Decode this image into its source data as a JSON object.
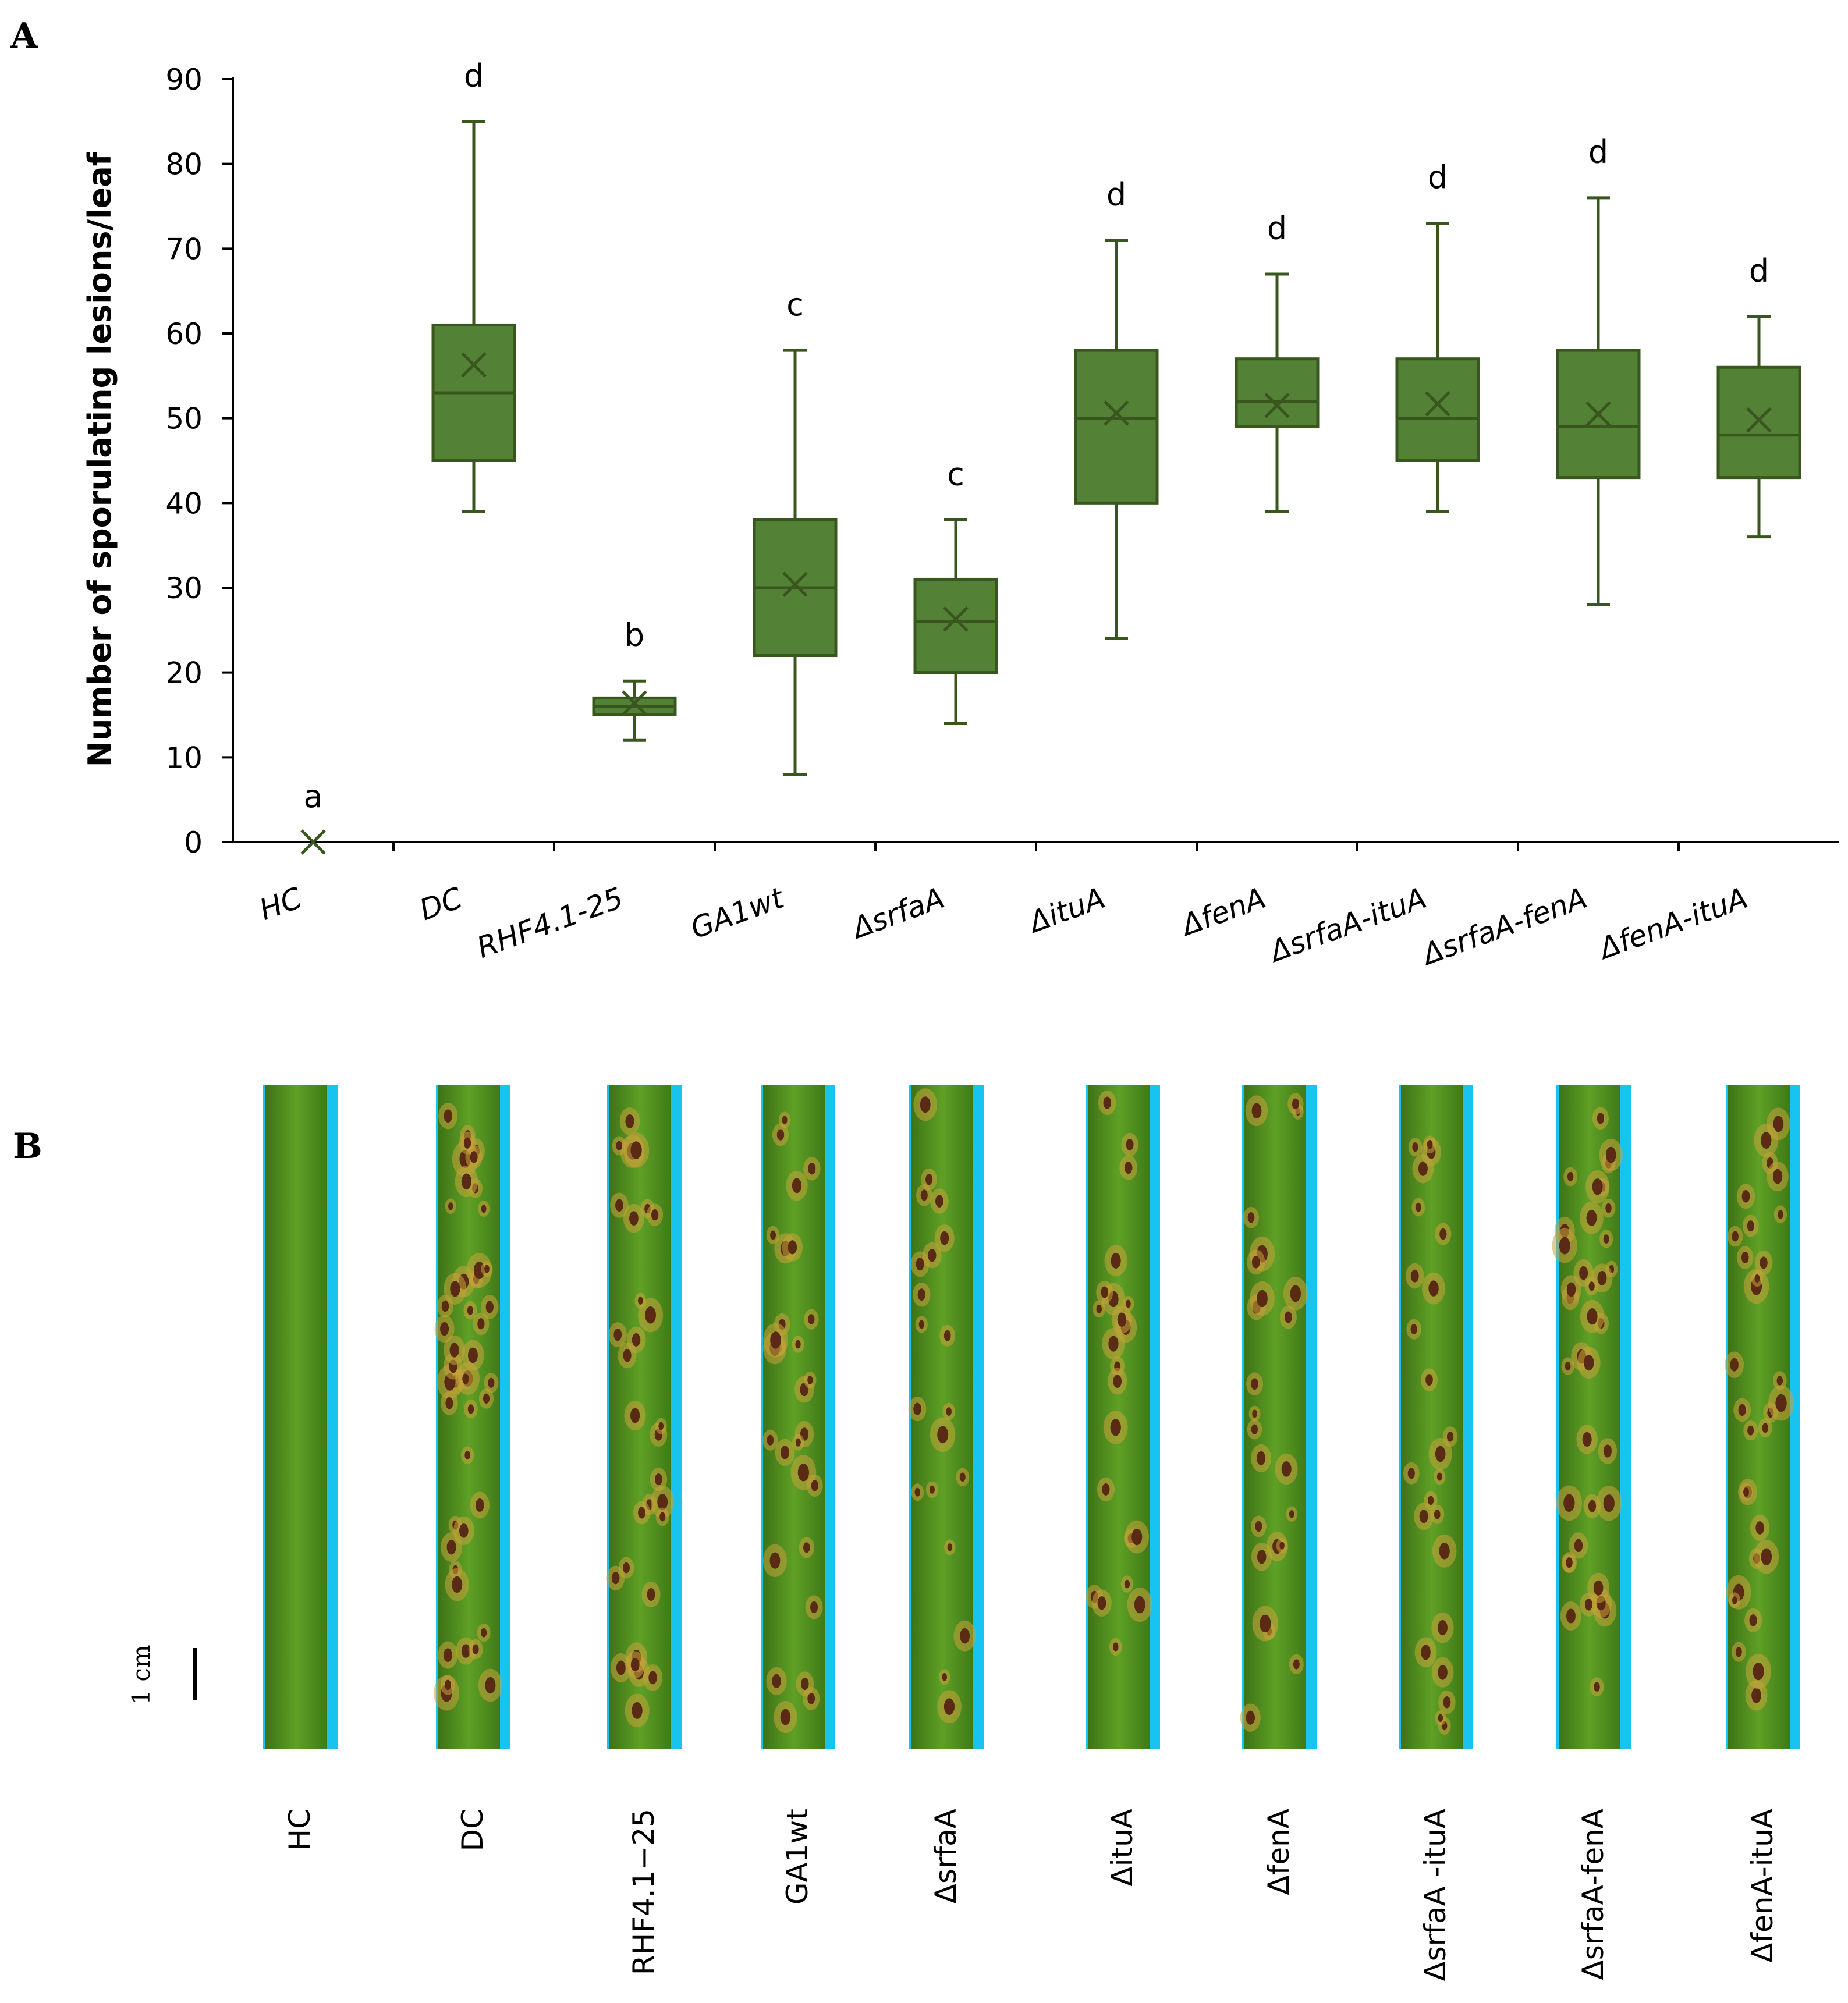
{
  "panel_a_label": "A",
  "panel_b_label": "B",
  "chart_data": {
    "type": "box",
    "title": "",
    "xlabel": "",
    "ylabel": "Number of sporulating lesions/leaf",
    "ylim": [
      0,
      90
    ],
    "yticks": [
      0,
      10,
      20,
      30,
      40,
      50,
      60,
      70,
      80,
      90
    ],
    "grid": false,
    "color": "#538135",
    "edge_color": "#38561e",
    "categories": [
      "HC",
      "DC",
      "RHF4.1-25",
      "GA1wt",
      "ΔsrfaA",
      "ΔituA",
      "ΔfenA",
      "ΔsrfaA-ituA",
      "ΔsrfaA-fenA",
      "ΔfenA-ituA"
    ],
    "boxes": [
      {
        "min": 0,
        "q1": 0,
        "median": 0,
        "q3": 0,
        "max": 0,
        "mean": 0,
        "letter": "a"
      },
      {
        "min": 39,
        "q1": 45,
        "median": 53,
        "q3": 61,
        "max": 85,
        "mean": 56.3,
        "letter": "d"
      },
      {
        "min": 12,
        "q1": 15,
        "median": 16,
        "q3": 17,
        "max": 19,
        "mean": 16.4,
        "letter": "b"
      },
      {
        "min": 8,
        "q1": 22,
        "median": 30,
        "q3": 38,
        "max": 58,
        "mean": 30.4,
        "letter": "c"
      },
      {
        "min": 14,
        "q1": 20,
        "median": 26,
        "q3": 31,
        "max": 38,
        "mean": 26.3,
        "letter": "c"
      },
      {
        "min": 24,
        "q1": 40,
        "median": 50,
        "q3": 58,
        "max": 71,
        "mean": 50.6,
        "letter": "d"
      },
      {
        "min": 39,
        "q1": 49,
        "median": 52,
        "q3": 57,
        "max": 67,
        "mean": 51.5,
        "letter": "d"
      },
      {
        "min": 39,
        "q1": 45,
        "median": 50,
        "q3": 57,
        "max": 73,
        "mean": 51.7,
        "letter": "d"
      },
      {
        "min": 28,
        "q1": 43,
        "median": 49,
        "q3": 58,
        "max": 76,
        "mean": 50.5,
        "letter": "d"
      },
      {
        "min": 36,
        "q1": 43,
        "median": 48,
        "q3": 56,
        "max": 62,
        "mean": 49.8,
        "letter": "d"
      }
    ]
  },
  "leaves": {
    "labels": [
      "HC",
      "DC",
      "RHF4.1−25",
      "GA1wt",
      "ΔsrfaA",
      "ΔituA",
      "ΔfenA",
      "ΔsrfaA -ituA",
      "ΔsrfaA-fenA",
      "ΔfenA-ituA"
    ],
    "scale_label": "1 cm",
    "leaf_color": "#4f8f1e",
    "background_color": "#19c3f0",
    "lesion_color": "#5a2a14",
    "halo_color": "#c9a23a"
  }
}
